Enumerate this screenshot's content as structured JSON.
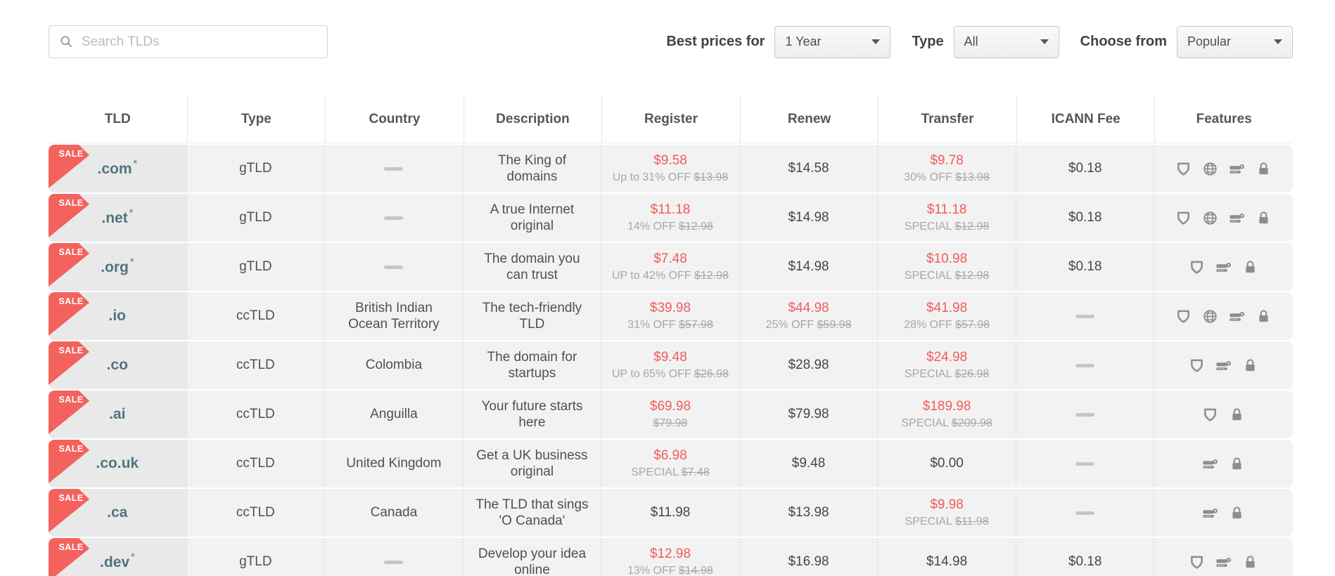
{
  "toolbar": {
    "search_placeholder": "Search TLDs",
    "filters": [
      {
        "label": "Best prices for",
        "value": "1 Year"
      },
      {
        "label": "Type",
        "value": "All"
      },
      {
        "label": "Choose from",
        "value": "Popular"
      }
    ]
  },
  "table": {
    "columns": [
      "TLD",
      "Type",
      "Country",
      "Description",
      "Register",
      "Renew",
      "Transfer",
      "ICANN Fee",
      "Features"
    ],
    "sale_badge_label": "SALE",
    "rows": [
      {
        "tld": ".com",
        "asterisk": true,
        "sale": true,
        "type": "gTLD",
        "country": null,
        "description": "The King of domains",
        "register": {
          "amount": "$9.58",
          "sale": true,
          "note": "Up to 31% OFF",
          "old": "$13.98"
        },
        "renew": {
          "amount": "$14.58",
          "sale": false,
          "note": null,
          "old": null
        },
        "transfer": {
          "amount": "$9.78",
          "sale": true,
          "note": "30% OFF",
          "old": "$13.98"
        },
        "icann": "$0.18",
        "features": [
          "shield-icon",
          "globe-icon",
          "server-icon",
          "lock-icon"
        ]
      },
      {
        "tld": ".net",
        "asterisk": true,
        "sale": true,
        "type": "gTLD",
        "country": null,
        "description": "A true Internet original",
        "register": {
          "amount": "$11.18",
          "sale": true,
          "note": "14% OFF",
          "old": "$12.98"
        },
        "renew": {
          "amount": "$14.98",
          "sale": false,
          "note": null,
          "old": null
        },
        "transfer": {
          "amount": "$11.18",
          "sale": true,
          "note": "SPECIAL",
          "old": "$12.98"
        },
        "icann": "$0.18",
        "features": [
          "shield-icon",
          "globe-icon",
          "server-icon",
          "lock-icon"
        ]
      },
      {
        "tld": ".org",
        "asterisk": true,
        "sale": true,
        "type": "gTLD",
        "country": null,
        "description": "The domain you can trust",
        "register": {
          "amount": "$7.48",
          "sale": true,
          "note": "UP to 42% OFF",
          "old": "$12.98"
        },
        "renew": {
          "amount": "$14.98",
          "sale": false,
          "note": null,
          "old": null
        },
        "transfer": {
          "amount": "$10.98",
          "sale": true,
          "note": "SPECIAL",
          "old": "$12.98"
        },
        "icann": "$0.18",
        "features": [
          "shield-icon",
          "server-icon",
          "lock-icon"
        ]
      },
      {
        "tld": ".io",
        "asterisk": false,
        "sale": true,
        "type": "ccTLD",
        "country": "British Indian Ocean Territory",
        "description": "The tech-friendly TLD",
        "register": {
          "amount": "$39.98",
          "sale": true,
          "note": "31% OFF",
          "old": "$57.98"
        },
        "renew": {
          "amount": "$44.98",
          "sale": true,
          "note": "25% OFF",
          "old": "$59.98"
        },
        "transfer": {
          "amount": "$41.98",
          "sale": true,
          "note": "28% OFF",
          "old": "$57.98"
        },
        "icann": null,
        "features": [
          "shield-icon",
          "globe-icon",
          "server-icon",
          "lock-icon"
        ]
      },
      {
        "tld": ".co",
        "asterisk": false,
        "sale": true,
        "type": "ccTLD",
        "country": "Colombia",
        "description": "The domain for startups",
        "register": {
          "amount": "$9.48",
          "sale": true,
          "note": "UP to 65% OFF",
          "old": "$26.98"
        },
        "renew": {
          "amount": "$28.98",
          "sale": false,
          "note": null,
          "old": null
        },
        "transfer": {
          "amount": "$24.98",
          "sale": true,
          "note": "SPECIAL",
          "old": "$26.98"
        },
        "icann": null,
        "features": [
          "shield-icon",
          "server-icon",
          "lock-icon"
        ]
      },
      {
        "tld": ".ai",
        "asterisk": false,
        "sale": true,
        "type": "ccTLD",
        "country": "Anguilla",
        "description": "Your future starts here",
        "register": {
          "amount": "$69.98",
          "sale": true,
          "note": "",
          "old": "$79.98"
        },
        "renew": {
          "amount": "$79.98",
          "sale": false,
          "note": null,
          "old": null
        },
        "transfer": {
          "amount": "$189.98",
          "sale": true,
          "note": "SPECIAL",
          "old": "$209.98"
        },
        "icann": null,
        "features": [
          "shield-icon",
          "lock-icon"
        ]
      },
      {
        "tld": ".co.uk",
        "asterisk": false,
        "sale": true,
        "type": "ccTLD",
        "country": "United Kingdom",
        "description": "Get a UK business original",
        "register": {
          "amount": "$6.98",
          "sale": true,
          "note": "SPECIAL",
          "old": "$7.48"
        },
        "renew": {
          "amount": "$9.48",
          "sale": false,
          "note": null,
          "old": null
        },
        "transfer": {
          "amount": "$0.00",
          "sale": false,
          "note": null,
          "old": null
        },
        "icann": null,
        "features": [
          "server-icon",
          "lock-icon"
        ]
      },
      {
        "tld": ".ca",
        "asterisk": false,
        "sale": true,
        "type": "ccTLD",
        "country": "Canada",
        "description": "The TLD that sings 'O Canada'",
        "register": {
          "amount": "$11.98",
          "sale": false,
          "note": null,
          "old": null
        },
        "renew": {
          "amount": "$13.98",
          "sale": false,
          "note": null,
          "old": null
        },
        "transfer": {
          "amount": "$9.98",
          "sale": true,
          "note": "SPECIAL",
          "old": "$11.98"
        },
        "icann": null,
        "features": [
          "server-icon",
          "lock-icon"
        ]
      },
      {
        "tld": ".dev",
        "asterisk": true,
        "sale": true,
        "type": "gTLD",
        "country": null,
        "description": "Develop your idea online",
        "register": {
          "amount": "$12.98",
          "sale": true,
          "note": "13% OFF",
          "old": "$14.98"
        },
        "renew": {
          "amount": "$16.98",
          "sale": false,
          "note": null,
          "old": null
        },
        "transfer": {
          "amount": "$14.98",
          "sale": false,
          "note": null,
          "old": null
        },
        "icann": "$0.18",
        "features": [
          "shield-icon",
          "server-icon",
          "lock-icon"
        ]
      }
    ]
  },
  "colors": {
    "sale_red": "#f4625d",
    "price_red": "#f25b5b",
    "tld_teal": "#50747f",
    "row_bg": "#f2f2f2",
    "tld_cell_bg": "#e9e9e9",
    "icon_gray": "#8d8d8d"
  }
}
